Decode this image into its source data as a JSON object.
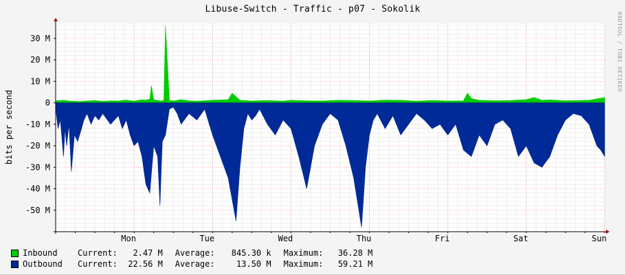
{
  "chart_data": {
    "type": "area",
    "title": "Libuse-Switch - Traffic - p07 - Sokolik",
    "ylabel": "bits per second",
    "watermark": "RRDTOOL / TOBI OETIKER",
    "ylim": [
      -60000000,
      37000000
    ],
    "y_ticks": [
      {
        "value": 30000000,
        "label": "30 M"
      },
      {
        "value": 20000000,
        "label": "20 M"
      },
      {
        "value": 10000000,
        "label": "10 M"
      },
      {
        "value": 0,
        "label": "0"
      },
      {
        "value": -10000000,
        "label": "-10 M"
      },
      {
        "value": -20000000,
        "label": "-20 M"
      },
      {
        "value": -30000000,
        "label": "-30 M"
      },
      {
        "value": -40000000,
        "label": "-40 M"
      },
      {
        "value": -50000000,
        "label": "-50 M"
      }
    ],
    "x_ticks": [
      {
        "t": 0.93,
        "label": "Mon"
      },
      {
        "t": 1.93,
        "label": "Tue"
      },
      {
        "t": 2.93,
        "label": "Wed"
      },
      {
        "t": 3.93,
        "label": "Thu"
      },
      {
        "t": 4.93,
        "label": "Fri"
      },
      {
        "t": 5.93,
        "label": "Sat"
      },
      {
        "t": 6.93,
        "label": "Sun"
      }
    ],
    "xlim": [
      0,
      7
    ],
    "grid": true,
    "series": [
      {
        "name": "Inbound",
        "color": "#00cc00",
        "x": [
          0.0,
          0.1,
          0.2,
          0.3,
          0.4,
          0.5,
          0.6,
          0.7,
          0.8,
          0.9,
          1.0,
          1.1,
          1.15,
          1.2,
          1.22,
          1.25,
          1.3,
          1.35,
          1.38,
          1.4,
          1.45,
          1.5,
          1.6,
          1.7,
          1.8,
          2.0,
          2.2,
          2.25,
          2.28,
          2.35,
          2.5,
          2.7,
          2.9,
          3.0,
          3.2,
          3.4,
          3.6,
          3.8,
          4.0,
          4.2,
          4.4,
          4.6,
          4.8,
          5.0,
          5.2,
          5.25,
          5.3,
          5.4,
          5.6,
          5.8,
          6.0,
          6.1,
          6.2,
          6.3,
          6.5,
          6.8,
          7.0
        ],
        "values": [
          1000000,
          1200000,
          800000,
          600000,
          900000,
          1100000,
          700000,
          1000000,
          900000,
          1300000,
          800000,
          1500000,
          1200000,
          1800000,
          8000000,
          1500000,
          1100000,
          900000,
          1200000,
          36000000,
          1200000,
          900000,
          1500000,
          1000000,
          800000,
          1200000,
          1500000,
          4500000,
          3500000,
          1200000,
          900000,
          1100000,
          800000,
          1200000,
          1000000,
          900000,
          1200000,
          1100000,
          900000,
          1300000,
          1200000,
          800000,
          1100000,
          900000,
          1000000,
          4500000,
          2000000,
          1200000,
          1000000,
          1100000,
          1500000,
          2500000,
          1200000,
          1400000,
          1000000,
          1200000,
          2500000
        ]
      },
      {
        "name": "Outbound",
        "color": "#002a97",
        "x": [
          0.0,
          0.03,
          0.06,
          0.1,
          0.12,
          0.14,
          0.17,
          0.2,
          0.24,
          0.28,
          0.33,
          0.36,
          0.4,
          0.45,
          0.5,
          0.55,
          0.6,
          0.7,
          0.8,
          0.85,
          0.9,
          0.95,
          1.0,
          1.05,
          1.1,
          1.15,
          1.2,
          1.25,
          1.3,
          1.33,
          1.36,
          1.4,
          1.45,
          1.5,
          1.55,
          1.6,
          1.7,
          1.8,
          1.9,
          2.0,
          2.1,
          2.2,
          2.25,
          2.3,
          2.35,
          2.4,
          2.45,
          2.5,
          2.55,
          2.6,
          2.7,
          2.8,
          2.9,
          3.0,
          3.1,
          3.2,
          3.3,
          3.4,
          3.5,
          3.6,
          3.7,
          3.8,
          3.9,
          3.95,
          4.0,
          4.05,
          4.1,
          4.2,
          4.3,
          4.4,
          4.5,
          4.6,
          4.7,
          4.8,
          4.9,
          5.0,
          5.1,
          5.2,
          5.3,
          5.4,
          5.5,
          5.6,
          5.7,
          5.8,
          5.9,
          6.0,
          6.1,
          6.2,
          6.3,
          6.4,
          6.5,
          6.6,
          6.7,
          6.8,
          6.85,
          6.9,
          6.95,
          7.0
        ],
        "values": [
          -2000000,
          -12000000,
          -8000000,
          -25000000,
          -12000000,
          -20000000,
          -10000000,
          -32000000,
          -15000000,
          -18000000,
          -12000000,
          -8000000,
          -5000000,
          -10000000,
          -6000000,
          -8000000,
          -5000000,
          -10000000,
          -6000000,
          -12000000,
          -8000000,
          -15000000,
          -20000000,
          -18000000,
          -25000000,
          -38000000,
          -42000000,
          -20000000,
          -25000000,
          -48000000,
          -18000000,
          -15000000,
          -3000000,
          -2000000,
          -5000000,
          -10000000,
          -5000000,
          -8000000,
          -3000000,
          -15000000,
          -25000000,
          -35000000,
          -45000000,
          -55000000,
          -30000000,
          -12000000,
          -5000000,
          -8000000,
          -6000000,
          -3000000,
          -10000000,
          -15000000,
          -8000000,
          -12000000,
          -25000000,
          -40000000,
          -20000000,
          -10000000,
          -5000000,
          -8000000,
          -20000000,
          -35000000,
          -58000000,
          -30000000,
          -15000000,
          -8000000,
          -5000000,
          -12000000,
          -6000000,
          -15000000,
          -10000000,
          -5000000,
          -8000000,
          -12000000,
          -10000000,
          -15000000,
          -10000000,
          -22000000,
          -25000000,
          -15000000,
          -20000000,
          -10000000,
          -8000000,
          -12000000,
          -25000000,
          -20000000,
          -28000000,
          -30000000,
          -25000000,
          -15000000,
          -8000000,
          -5000000,
          -6000000,
          -10000000,
          -15000000,
          -20000000,
          -22000000,
          -25000000
        ]
      }
    ]
  },
  "legend": [
    {
      "name": "Inbound",
      "color": "#00cc00",
      "current_label": "Current:",
      "current": "2.47 M",
      "average_label": "Average:",
      "average": "845.30 k",
      "maximum_label": "Maximum:",
      "maximum": "36.28 M"
    },
    {
      "name": "Outbound",
      "color": "#002a97",
      "current_label": "Current:",
      "current": "22.56 M",
      "average_label": "Average:",
      "average": "13.50 M",
      "maximum_label": "Maximum:",
      "maximum": "59.21 M"
    }
  ]
}
